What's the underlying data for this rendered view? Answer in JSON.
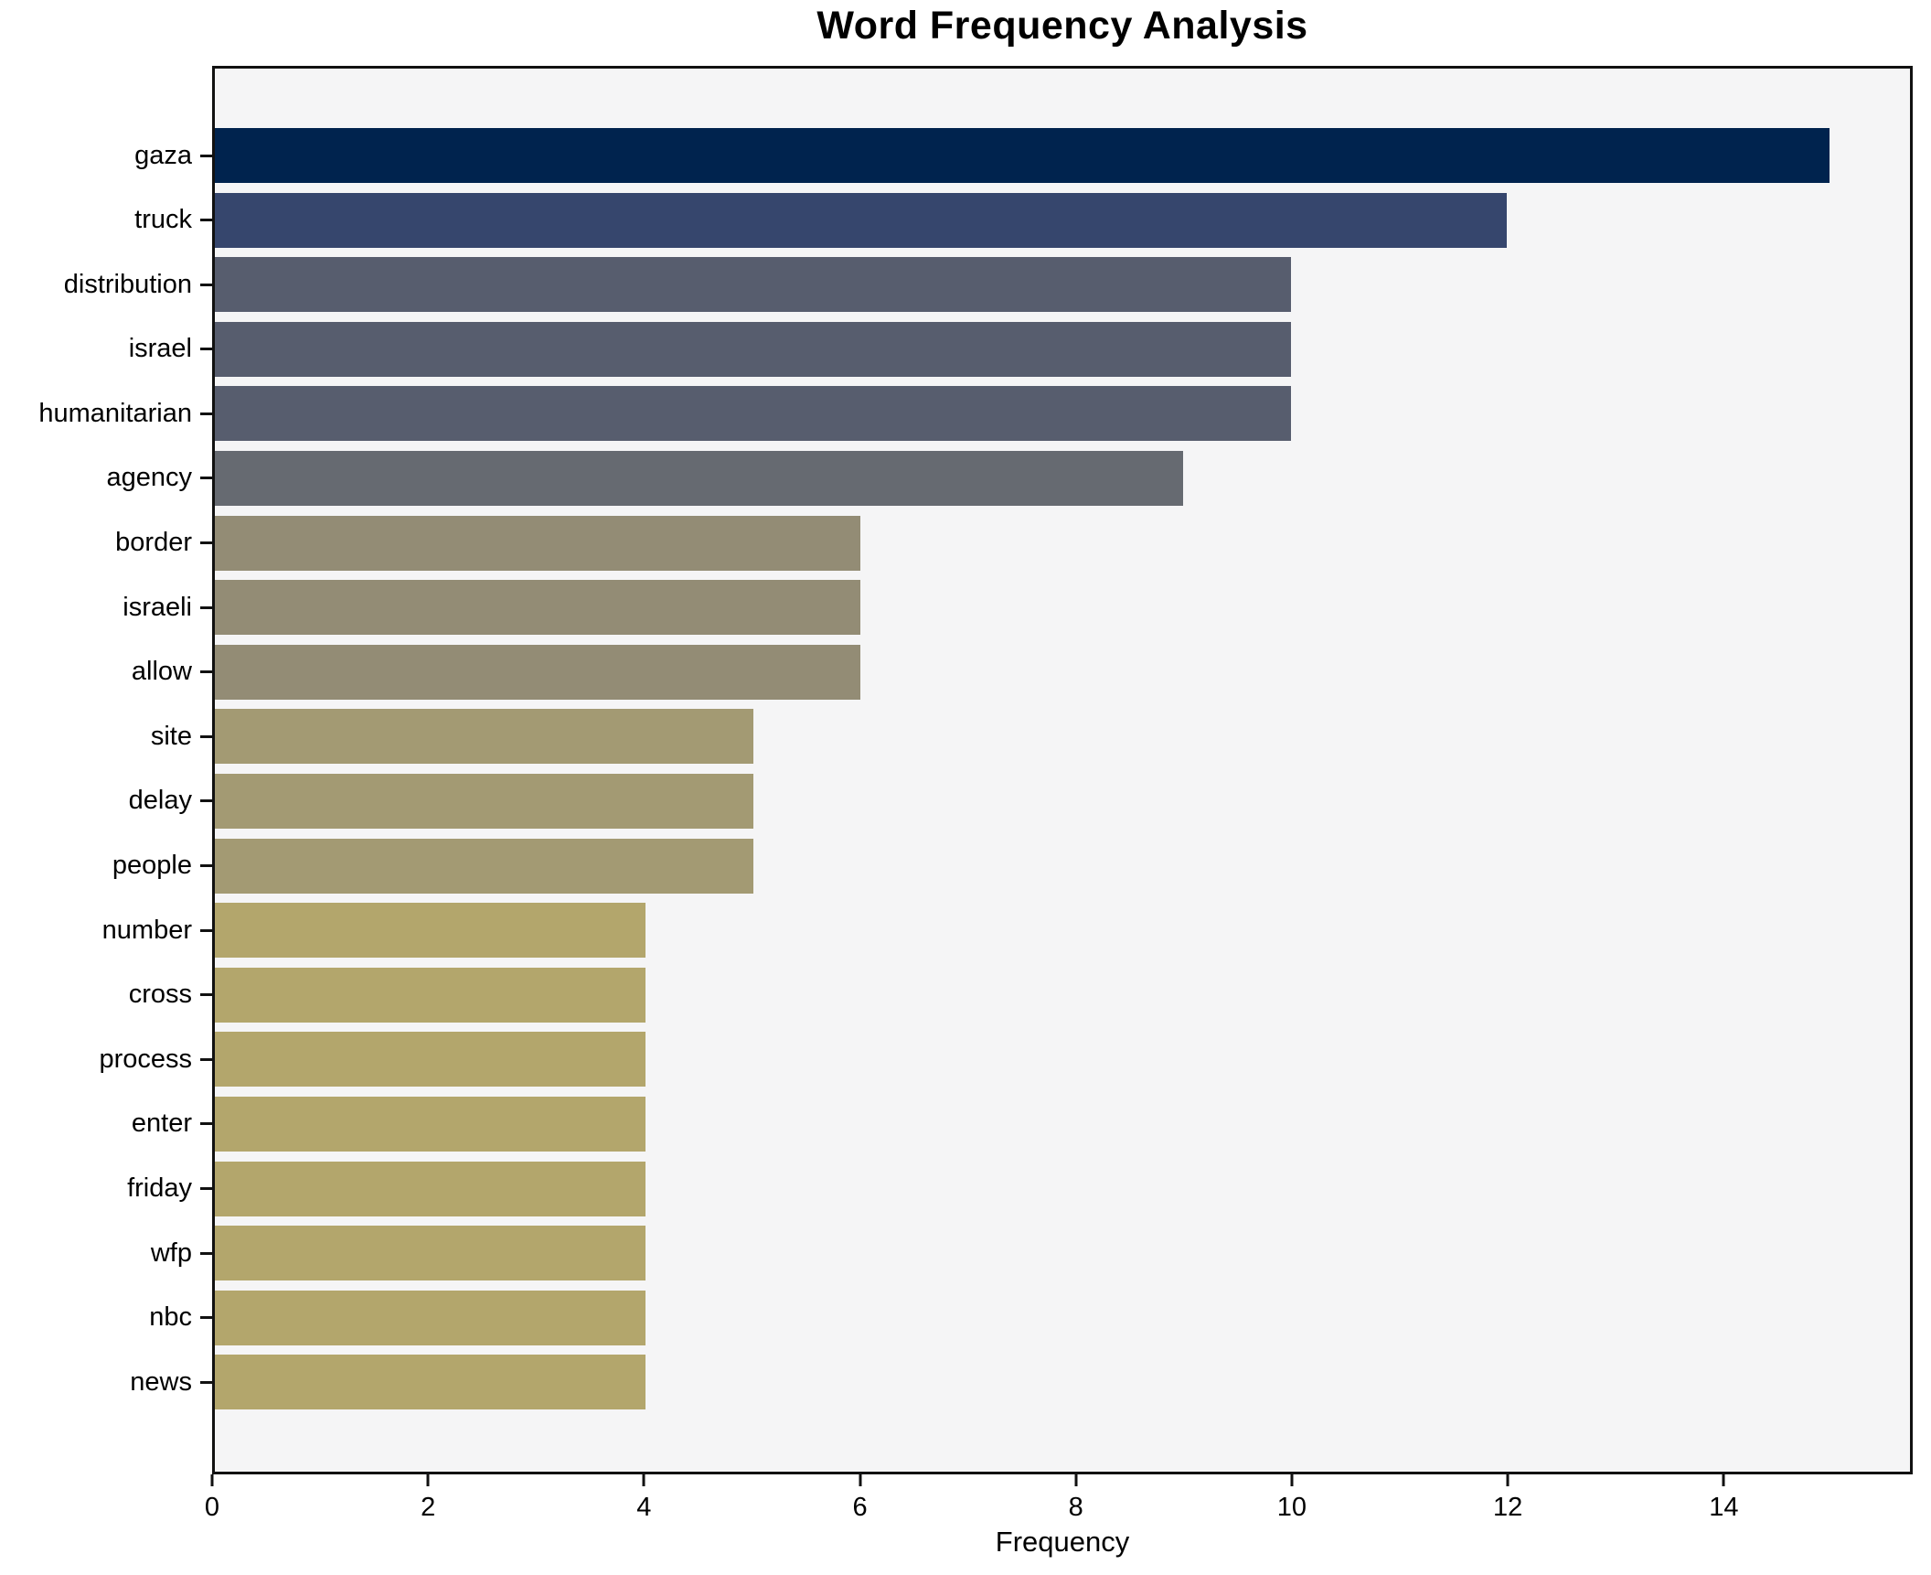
{
  "chart_data": {
    "type": "bar",
    "orientation": "horizontal",
    "title": "Word Frequency Analysis",
    "xlabel": "Frequency",
    "ylabel": "",
    "xlim": [
      0,
      15.75
    ],
    "x_ticks": [
      0,
      2,
      4,
      6,
      8,
      10,
      12,
      14
    ],
    "grid": false,
    "legend": false,
    "categories": [
      "gaza",
      "truck",
      "distribution",
      "israel",
      "humanitarian",
      "agency",
      "border",
      "israeli",
      "allow",
      "site",
      "delay",
      "people",
      "number",
      "cross",
      "process",
      "enter",
      "friday",
      "wfp",
      "nbc",
      "news"
    ],
    "values": [
      15,
      12,
      10,
      10,
      10,
      9,
      6,
      6,
      6,
      5,
      5,
      5,
      4,
      4,
      4,
      4,
      4,
      4,
      4,
      4
    ],
    "bar_colors": [
      "#00234e",
      "#36466d",
      "#575d6e",
      "#575d6e",
      "#575d6e",
      "#666a71",
      "#938c75",
      "#938c75",
      "#938c75",
      "#a39a73",
      "#a39a73",
      "#a39a73",
      "#b3a66c",
      "#b3a66c",
      "#b3a66c",
      "#b3a66c",
      "#b3a66c",
      "#b3a66c",
      "#b3a66c",
      "#b3a66c"
    ]
  },
  "colors": {
    "figure_background": "#ffffff",
    "plot_background": "#f5f5f6",
    "spine": "#111111",
    "text": "#000000"
  }
}
